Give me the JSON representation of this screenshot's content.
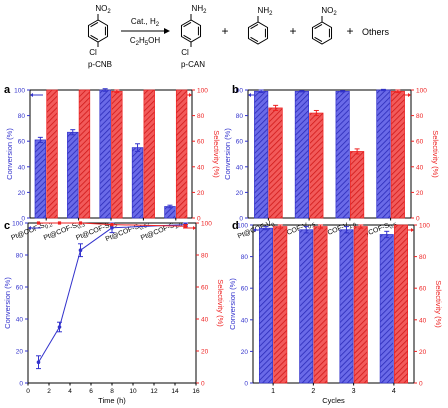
{
  "scheme": {
    "reactant": "p-CNB",
    "reactant_groups": {
      "top": "NO2",
      "bottom": "Cl"
    },
    "conditions_top": "Cat., H2",
    "conditions_bottom": "C2H5OH",
    "product": "p-CAN",
    "product_groups": {
      "top": "NH2",
      "bottom": "Cl"
    },
    "byproduct_1_group": "NH2",
    "byproduct_2_group": "NO2",
    "others": "Others",
    "plus": "+"
  },
  "colors": {
    "conversion": "#3333cc",
    "selectivity": "#ee2222"
  },
  "chart_data": [
    {
      "panel": "a",
      "type": "bar",
      "ylabel_left": "Conversion (%)",
      "ylabel_right": "Selectivity (%)",
      "ylim": [
        0,
        100
      ],
      "yticks": [
        0,
        20,
        40,
        60,
        80,
        100
      ],
      "categories": [
        "Pt@COF-S0.2",
        "Pt@COF-S0.3",
        "Pt@COF-S0.5",
        "Pt@COF-S0.67",
        "Pt@COF-S1.0"
      ],
      "category_labels": [
        {
          "main": "Pt@COF-S",
          "sub": "0.2"
        },
        {
          "main": "Pt@COF-S",
          "sub": "0.3"
        },
        {
          "main": "Pt@COF-S",
          "sub": "0.5"
        },
        {
          "main": "Pt@COF-S",
          "sub": "0.67"
        },
        {
          "main": "Pt@COF-S",
          "sub": "1.0"
        }
      ],
      "series": [
        {
          "name": "Conversion",
          "axis": "left",
          "values": [
            61,
            67,
            100,
            55,
            9
          ],
          "errors": [
            2,
            2,
            1,
            3,
            1
          ]
        },
        {
          "name": "Selectivity",
          "axis": "right",
          "values": [
            100,
            100,
            99,
            100,
            100
          ],
          "errors": [
            0,
            0,
            1,
            0,
            0
          ]
        }
      ]
    },
    {
      "panel": "b",
      "type": "bar",
      "ylabel_left": "Conversion (%)",
      "ylabel_right": "Selectivity (%)",
      "ylim": [
        0,
        100
      ],
      "yticks": [
        0,
        20,
        40,
        60,
        80,
        100
      ],
      "categories": [
        "Pt@COF-V0",
        "Pt@COF-V0.5",
        "Pt@COF-V1.0",
        "Pt@COF-S0.5"
      ],
      "category_labels": [
        {
          "main": "Pt@COF-V",
          "sub": "0"
        },
        {
          "main": "Pt@COF-V",
          "sub": "0.5"
        },
        {
          "main": "Pt@COF-V",
          "sub": "1.0"
        },
        {
          "main": "Pt@COF-S",
          "sub": "0.5"
        }
      ],
      "series": [
        {
          "name": "Conversion",
          "axis": "left",
          "values": [
            99,
            99,
            99,
            100
          ],
          "errors": [
            1,
            0.5,
            0.5,
            0.5
          ]
        },
        {
          "name": "Selectivity",
          "axis": "right",
          "values": [
            86,
            82,
            52,
            99
          ],
          "errors": [
            2,
            2,
            2,
            1
          ]
        }
      ]
    },
    {
      "panel": "c",
      "type": "line",
      "xlabel": "Time (h)",
      "ylabel_left": "Conversion (%)",
      "ylabel_right": "Selectivity (%)",
      "xlim": [
        0,
        16
      ],
      "xticks": [
        0,
        2,
        4,
        6,
        8,
        10,
        12,
        14,
        16
      ],
      "ylim": [
        0,
        100
      ],
      "yticks": [
        0,
        20,
        40,
        60,
        80,
        100
      ],
      "series": [
        {
          "name": "Conversion",
          "axis": "left",
          "x": [
            1,
            3,
            5,
            8,
            15
          ],
          "values": [
            13,
            35,
            83,
            97,
            99
          ],
          "errors": [
            4,
            3,
            4,
            3,
            1
          ]
        },
        {
          "name": "Selectivity",
          "axis": "right",
          "x": [
            1,
            3,
            5,
            8,
            15
          ],
          "values": [
            100,
            100,
            100,
            99,
            98
          ],
          "errors": [
            0,
            0,
            0,
            0,
            1
          ]
        }
      ]
    },
    {
      "panel": "d",
      "type": "bar",
      "xlabel": "Cycles",
      "ylabel_left": "Conversion (%)",
      "ylabel_right": "Selectivity (%)",
      "ylim": [
        0,
        100
      ],
      "yticks": [
        0,
        20,
        40,
        60,
        80,
        100
      ],
      "categories": [
        "1",
        "2",
        "3",
        "4"
      ],
      "series": [
        {
          "name": "Conversion",
          "axis": "left",
          "values": [
            98,
            97,
            97,
            94
          ],
          "errors": [
            1,
            2,
            2,
            2
          ]
        },
        {
          "name": "Selectivity",
          "axis": "right",
          "values": [
            99,
            99,
            99,
            100
          ],
          "errors": [
            1,
            1,
            1,
            0
          ]
        }
      ]
    }
  ]
}
